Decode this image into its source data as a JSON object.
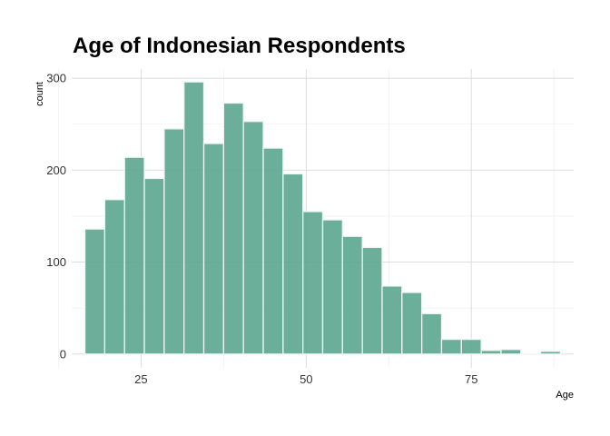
{
  "chart_data": {
    "type": "bar",
    "title": "Age of Indonesian Respondents",
    "xlabel": "Age",
    "ylabel": "count",
    "xlim": [
      14.5,
      90.5
    ],
    "ylim": [
      -15,
      310
    ],
    "x_ticks": [
      25,
      50,
      75
    ],
    "y_ticks": [
      0,
      100,
      200,
      300
    ],
    "bin_width": 3,
    "bins": [
      {
        "x": 18,
        "count": 136
      },
      {
        "x": 21,
        "count": 168
      },
      {
        "x": 24,
        "count": 214
      },
      {
        "x": 27,
        "count": 191
      },
      {
        "x": 30,
        "count": 245
      },
      {
        "x": 33,
        "count": 296
      },
      {
        "x": 36,
        "count": 229
      },
      {
        "x": 39,
        "count": 273
      },
      {
        "x": 42,
        "count": 253
      },
      {
        "x": 45,
        "count": 224
      },
      {
        "x": 48,
        "count": 196
      },
      {
        "x": 51,
        "count": 155
      },
      {
        "x": 54,
        "count": 146
      },
      {
        "x": 57,
        "count": 128
      },
      {
        "x": 60,
        "count": 116
      },
      {
        "x": 63,
        "count": 74
      },
      {
        "x": 66,
        "count": 67
      },
      {
        "x": 69,
        "count": 44
      },
      {
        "x": 72,
        "count": 16
      },
      {
        "x": 75,
        "count": 16
      },
      {
        "x": 78,
        "count": 4
      },
      {
        "x": 81,
        "count": 5
      },
      {
        "x": 84,
        "count": 0
      },
      {
        "x": 87,
        "count": 3
      }
    ],
    "bar_color": "#5ba58f",
    "grid": true,
    "legend": "none"
  }
}
